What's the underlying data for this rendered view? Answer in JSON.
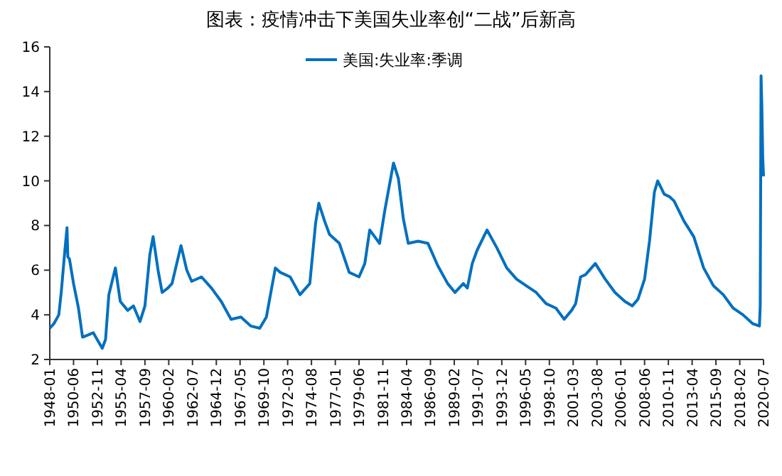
{
  "chart_data": {
    "type": "line",
    "title": "图表：疫情冲击下美国失业率创“二战”后新高",
    "x": [
      "1948-01",
      "1948-06",
      "1948-12",
      "1949-03",
      "1949-07",
      "1949-10",
      "1949-11",
      "1950-01",
      "1950-06",
      "1950-12",
      "1951-05",
      "1951-12",
      "1952-06",
      "1953-05",
      "1953-09",
      "1954-01",
      "1954-09",
      "1955-03",
      "1955-12",
      "1956-07",
      "1957-03",
      "1957-09",
      "1958-03",
      "1958-07",
      "1959-01",
      "1959-06",
      "1960-01",
      "1960-06",
      "1961-05",
      "1961-12",
      "1962-06",
      "1963-06",
      "1964-06",
      "1965-06",
      "1966-06",
      "1967-06",
      "1968-06",
      "1969-05",
      "1970-01",
      "1970-06",
      "1970-12",
      "1971-06",
      "1972-06",
      "1973-06",
      "1974-06",
      "1975-01",
      "1975-05",
      "1975-12",
      "1976-06",
      "1977-06",
      "1978-06",
      "1979-06",
      "1980-01",
      "1980-07",
      "1981-01",
      "1981-07",
      "1982-01",
      "1982-06",
      "1982-12",
      "1983-06",
      "1983-12",
      "1984-06",
      "1985-06",
      "1986-06",
      "1987-06",
      "1988-06",
      "1989-03",
      "1990-01",
      "1990-06",
      "1990-12",
      "1991-06",
      "1992-06",
      "1993-06",
      "1994-06",
      "1995-06",
      "1996-06",
      "1997-06",
      "1998-06",
      "1999-06",
      "2000-04",
      "2001-01",
      "2001-06",
      "2001-12",
      "2002-06",
      "2003-06",
      "2004-06",
      "2005-06",
      "2006-06",
      "2007-03",
      "2007-10",
      "2008-06",
      "2008-12",
      "2009-06",
      "2009-10",
      "2010-06",
      "2010-12",
      "2011-06",
      "2012-06",
      "2013-06",
      "2014-06",
      "2015-06",
      "2016-06",
      "2017-06",
      "2018-06",
      "2019-06",
      "2020-02",
      "2020-03",
      "2020-04",
      "2020-05",
      "2020-06",
      "2020-07"
    ],
    "series": [
      {
        "name": "美国:失业率:季调",
        "color": "#0070c0",
        "values": [
          3.4,
          3.6,
          4.0,
          5.0,
          6.7,
          7.9,
          6.6,
          6.5,
          5.4,
          4.3,
          3.0,
          3.1,
          3.2,
          2.5,
          2.9,
          4.9,
          6.1,
          4.6,
          4.2,
          4.4,
          3.7,
          4.4,
          6.7,
          7.5,
          6.0,
          5.0,
          5.2,
          5.4,
          7.1,
          6.0,
          5.5,
          5.7,
          5.2,
          4.6,
          3.8,
          3.9,
          3.5,
          3.4,
          3.9,
          4.9,
          6.1,
          5.9,
          5.7,
          4.9,
          5.4,
          8.1,
          9.0,
          8.2,
          7.6,
          7.2,
          5.9,
          5.7,
          6.3,
          7.8,
          7.5,
          7.2,
          8.6,
          9.6,
          10.8,
          10.1,
          8.3,
          7.2,
          7.3,
          7.2,
          6.2,
          5.4,
          5.0,
          5.4,
          5.2,
          6.3,
          6.9,
          7.8,
          7.0,
          6.1,
          5.6,
          5.3,
          5.0,
          4.5,
          4.3,
          3.8,
          4.2,
          4.5,
          5.7,
          5.8,
          6.3,
          5.6,
          5.0,
          4.6,
          4.4,
          4.7,
          5.6,
          7.3,
          9.5,
          10.0,
          9.4,
          9.3,
          9.1,
          8.2,
          7.5,
          6.1,
          5.3,
          4.9,
          4.3,
          4.0,
          3.6,
          3.5,
          4.4,
          14.7,
          13.3,
          11.1,
          10.2
        ]
      }
    ],
    "xlim": [
      "1948-01",
      "2020-07"
    ],
    "xticks": [
      "1948-01",
      "1950-06",
      "1952-11",
      "1955-04",
      "1957-09",
      "1960-02",
      "1962-07",
      "1964-12",
      "1967-05",
      "1969-10",
      "1972-03",
      "1974-08",
      "1977-01",
      "1979-06",
      "1981-11",
      "1984-04",
      "1986-09",
      "1989-02",
      "1991-07",
      "1993-12",
      "1996-05",
      "1998-10",
      "2001-03",
      "2003-08",
      "2006-01",
      "2008-06",
      "2010-11",
      "2013-04",
      "2015-09",
      "2018-02",
      "2020-07"
    ],
    "ylim": [
      2,
      16
    ],
    "yticks": [
      2,
      4,
      6,
      8,
      10,
      12,
      14,
      16
    ],
    "grid": false,
    "legend": "top",
    "line_style": "solid",
    "marker": "none"
  }
}
